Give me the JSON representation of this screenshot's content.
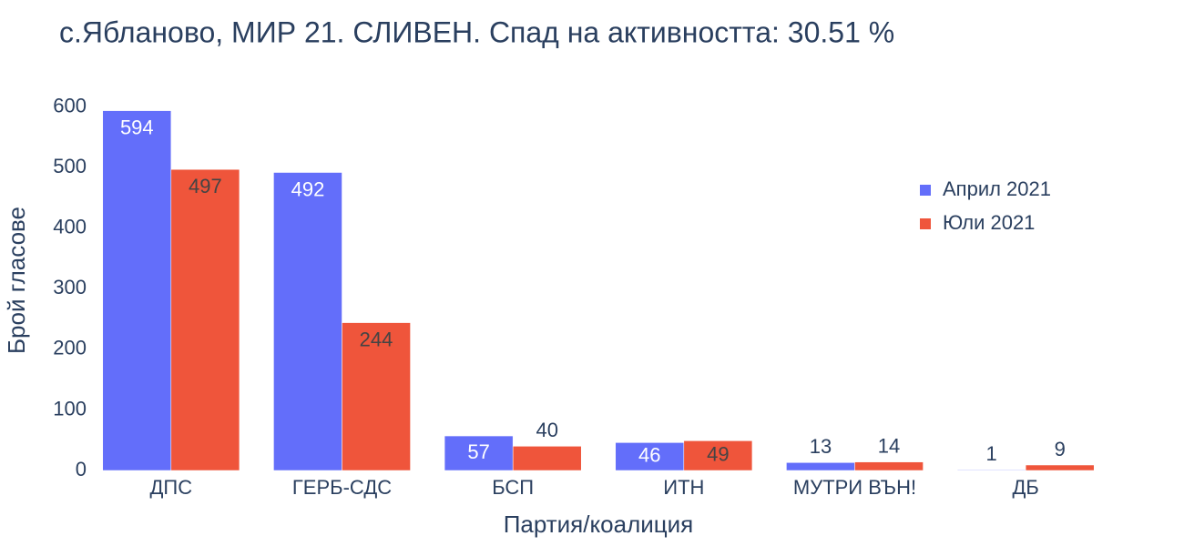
{
  "chart_data": {
    "type": "bar",
    "title": "с.Ябланово, МИР 21. СЛИВЕН. Спад на активността: 30.51 %",
    "x_label": "Партия/коалиция",
    "y_label": "Брой гласове",
    "categories": [
      "ДПС",
      "ГЕРБ-СДС",
      "БСП",
      "ИТН",
      "МУТРИ ВЪН!",
      "ДБ"
    ],
    "series": [
      {
        "name": "Април 2021",
        "color": "#636efa",
        "values": [
          594,
          492,
          57,
          46,
          13,
          1
        ]
      },
      {
        "name": "Юли 2021",
        "color": "#ef553b",
        "values": [
          497,
          244,
          40,
          49,
          14,
          9
        ]
      }
    ],
    "ylim": [
      0,
      625
    ],
    "yticks": [
      0,
      100,
      200,
      300,
      400,
      500,
      600
    ],
    "grid": false,
    "legend": "upper right"
  }
}
